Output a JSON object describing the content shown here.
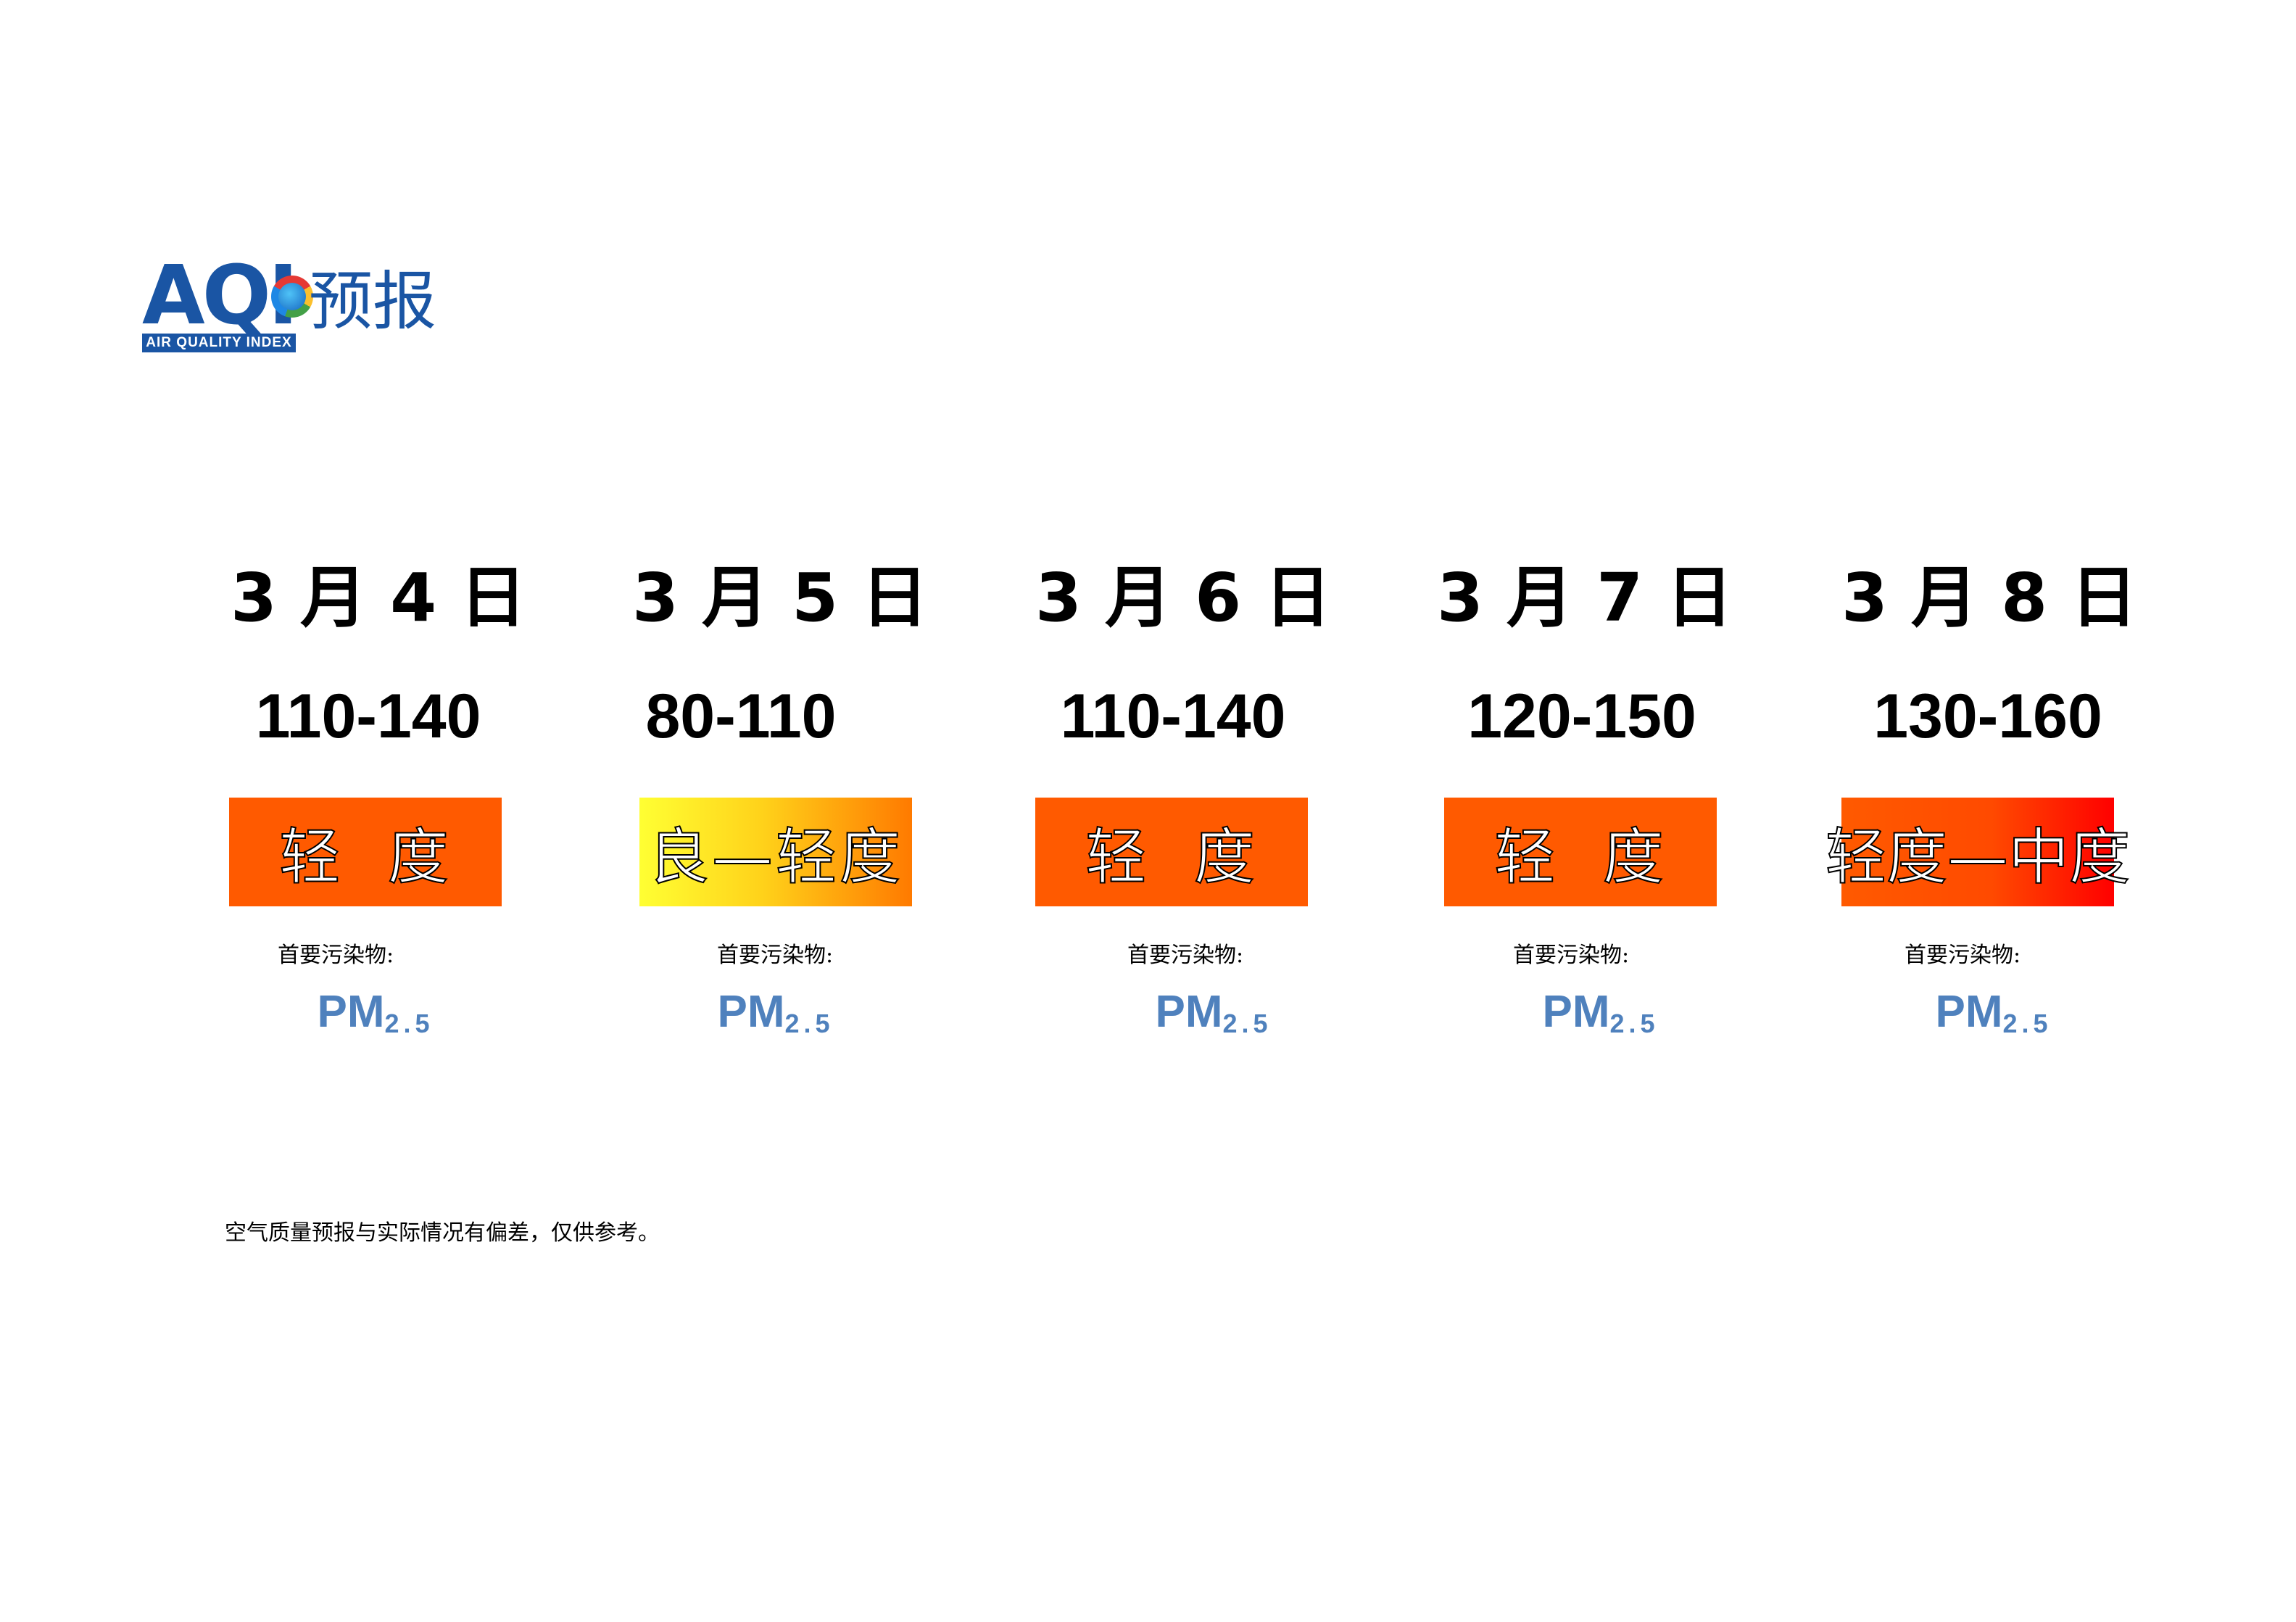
{
  "logo": {
    "acronym_a": "A",
    "acronym_q": "Q",
    "acronym_i": "I",
    "tagline": "AIR QUALITY INDEX",
    "title_cn": "预报"
  },
  "forecast": [
    {
      "date": "3 月 4 日",
      "range": "110-140",
      "level": "轻  度",
      "level_color": "#ff5a00",
      "pollutant_label": "首要污染物:",
      "pollutant_main": "PM",
      "pollutant_sub": "2.5"
    },
    {
      "date": "3 月 5 日",
      "range": "80-110",
      "level": "良—轻度",
      "level_color": "#ffd21a",
      "pollutant_label": "首要污染物:",
      "pollutant_main": "PM",
      "pollutant_sub": "2.5"
    },
    {
      "date": "3 月 6 日",
      "range": "110-140",
      "level": "轻  度",
      "level_color": "#ff5a00",
      "pollutant_label": "首要污染物:",
      "pollutant_main": "PM",
      "pollutant_sub": "2.5"
    },
    {
      "date": "3 月 7 日",
      "range": "120-150",
      "level": "轻  度",
      "level_color": "#ff5a00",
      "pollutant_label": "首要污染物:",
      "pollutant_main": "PM",
      "pollutant_sub": "2.5"
    },
    {
      "date": "3 月 8 日",
      "range": "130-160",
      "level": "轻度—中度",
      "level_color": "#ff0000",
      "pollutant_label": "首要污染物:",
      "pollutant_main": "PM",
      "pollutant_sub": "2.5"
    }
  ],
  "footnote": "空气质量预报与实际情况有偏差，仅供参考。"
}
